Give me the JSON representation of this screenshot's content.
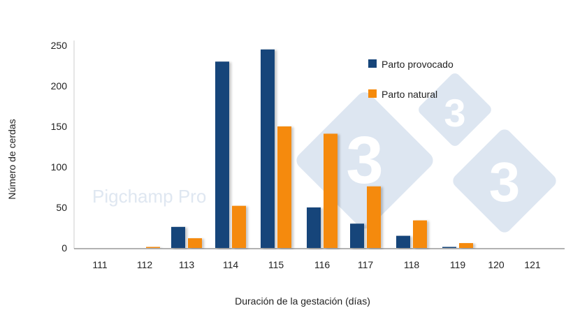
{
  "chart_data": {
    "type": "bar",
    "title": "",
    "xlabel": "Duración de la gestación (días)",
    "ylabel": "Número de cerdas",
    "categories": [
      "111",
      "112",
      "113",
      "114",
      "115",
      "116",
      "117",
      "118",
      "119",
      "120",
      "121"
    ],
    "series": [
      {
        "name": "Parto provocado",
        "color": "#17457a",
        "values": [
          0,
          0,
          26,
          230,
          245,
          50,
          30,
          15,
          1,
          0,
          0
        ]
      },
      {
        "name": "Parto natural",
        "color": "#f58a0b",
        "values": [
          0,
          1,
          12,
          52,
          150,
          141,
          76,
          34,
          6,
          0,
          0
        ]
      }
    ],
    "ylim": [
      0,
      250
    ],
    "yticks": [
      0,
      50,
      100,
      150,
      200,
      250
    ],
    "grid": false,
    "legend_position": "top-right"
  },
  "watermark": {
    "text": "Pigchamp Pro",
    "logo_glyph": "3",
    "logo_color": "#dde6f1"
  }
}
